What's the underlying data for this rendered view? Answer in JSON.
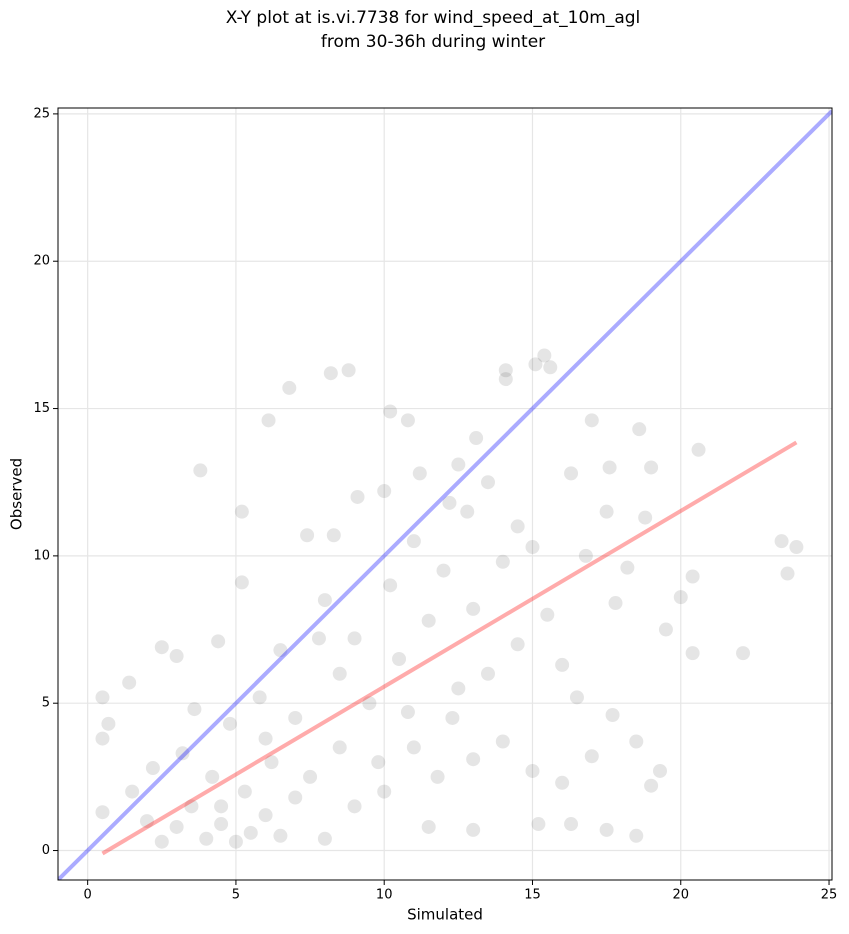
{
  "chart_data": {
    "type": "scatter",
    "title": [
      "X-Y plot at is.vi.7738 for wind_speed_at_10m_agl",
      "from 30-36h during winter"
    ],
    "x_label": "Simulated",
    "y_label": "Observed",
    "xlim": [
      -1,
      25.1
    ],
    "ylim": [
      -1,
      25.2
    ],
    "xticks": [
      0,
      5,
      10,
      15,
      20,
      25
    ],
    "yticks": [
      0,
      5,
      10,
      15,
      20,
      25
    ],
    "grid": true,
    "points": {
      "color": "#000000",
      "opacity": 0.1,
      "x": [
        0.5,
        0.5,
        0.7,
        0.5,
        3.8,
        6.1,
        6.8,
        8.2,
        8.8,
        5.2,
        5.2,
        10.2,
        10.8,
        14.1,
        14.1,
        15.1,
        15.4,
        15.6,
        17.0,
        18.6,
        20.6,
        23.4,
        23.9,
        23.6,
        22.1,
        20.4,
        20.4,
        20.0,
        19.5,
        18.5,
        17.5,
        18.5,
        19.0,
        19.3,
        17.7,
        16.3,
        15.2,
        13.0,
        11.5,
        3.0,
        2.5,
        1.4,
        4.4,
        7.4,
        8.3,
        9.1,
        10.0,
        11.2,
        12.5,
        13.1,
        16.3,
        17.6,
        19.0,
        18.8,
        17.8,
        16.0,
        16.5,
        17.0,
        16.0,
        15.0,
        14.0,
        13.0,
        12.3,
        11.0,
        10.0,
        9.0,
        8.0,
        1.5,
        2.0,
        2.5,
        3.0,
        3.5,
        4.0,
        4.5,
        5.0,
        5.5,
        6.0,
        6.5,
        7.0,
        4.2,
        5.3,
        6.2,
        3.2,
        2.2,
        7.5,
        8.5,
        7.0,
        5.8,
        4.8,
        3.6,
        9.5,
        10.5,
        9.0,
        8.0,
        6.5,
        11.5,
        12.0,
        11.0,
        12.8,
        13.5,
        14.5,
        13.0,
        14.0,
        15.0,
        15.5,
        14.5,
        13.5,
        12.5,
        10.8,
        9.8,
        8.5,
        7.8,
        11.8,
        16.8,
        17.5,
        18.2,
        12.2,
        10.2,
        6.0,
        4.5
      ],
      "y": [
        5.2,
        3.8,
        4.3,
        1.3,
        12.9,
        14.6,
        15.7,
        16.2,
        16.3,
        11.5,
        9.1,
        14.9,
        14.6,
        16.3,
        16.0,
        16.5,
        16.8,
        16.4,
        14.6,
        14.3,
        13.6,
        10.5,
        10.3,
        9.4,
        6.7,
        6.7,
        9.3,
        8.6,
        7.5,
        0.5,
        0.7,
        3.7,
        2.2,
        2.7,
        4.6,
        0.9,
        0.9,
        0.7,
        0.8,
        6.6,
        6.9,
        5.7,
        7.1,
        10.7,
        10.7,
        12.0,
        12.2,
        12.8,
        13.1,
        14.0,
        12.8,
        13.0,
        13.0,
        11.3,
        8.4,
        6.3,
        5.2,
        3.2,
        2.3,
        2.7,
        3.7,
        3.1,
        4.5,
        3.5,
        2.0,
        1.5,
        0.4,
        2.0,
        1.0,
        0.3,
        0.8,
        1.5,
        0.4,
        0.9,
        0.3,
        0.6,
        1.2,
        0.5,
        1.8,
        2.5,
        2.0,
        3.0,
        3.3,
        2.8,
        2.5,
        3.5,
        4.5,
        5.2,
        4.3,
        4.8,
        5.0,
        6.5,
        7.2,
        8.5,
        6.8,
        7.8,
        9.5,
        10.5,
        11.5,
        12.5,
        11.0,
        8.2,
        9.8,
        10.3,
        8.0,
        7.0,
        6.0,
        5.5,
        4.7,
        3.0,
        6.0,
        7.2,
        2.5,
        10.0,
        11.5,
        9.6,
        11.8,
        9.0,
        3.8,
        1.5
      ]
    },
    "lines": [
      {
        "color": "#0000ff",
        "x": [
          -1,
          25.1
        ],
        "y": [
          -1,
          25.1
        ]
      },
      {
        "color": "#ff0000",
        "x": [
          0.5,
          23.9
        ],
        "y": [
          -0.1,
          13.85
        ]
      }
    ]
  }
}
